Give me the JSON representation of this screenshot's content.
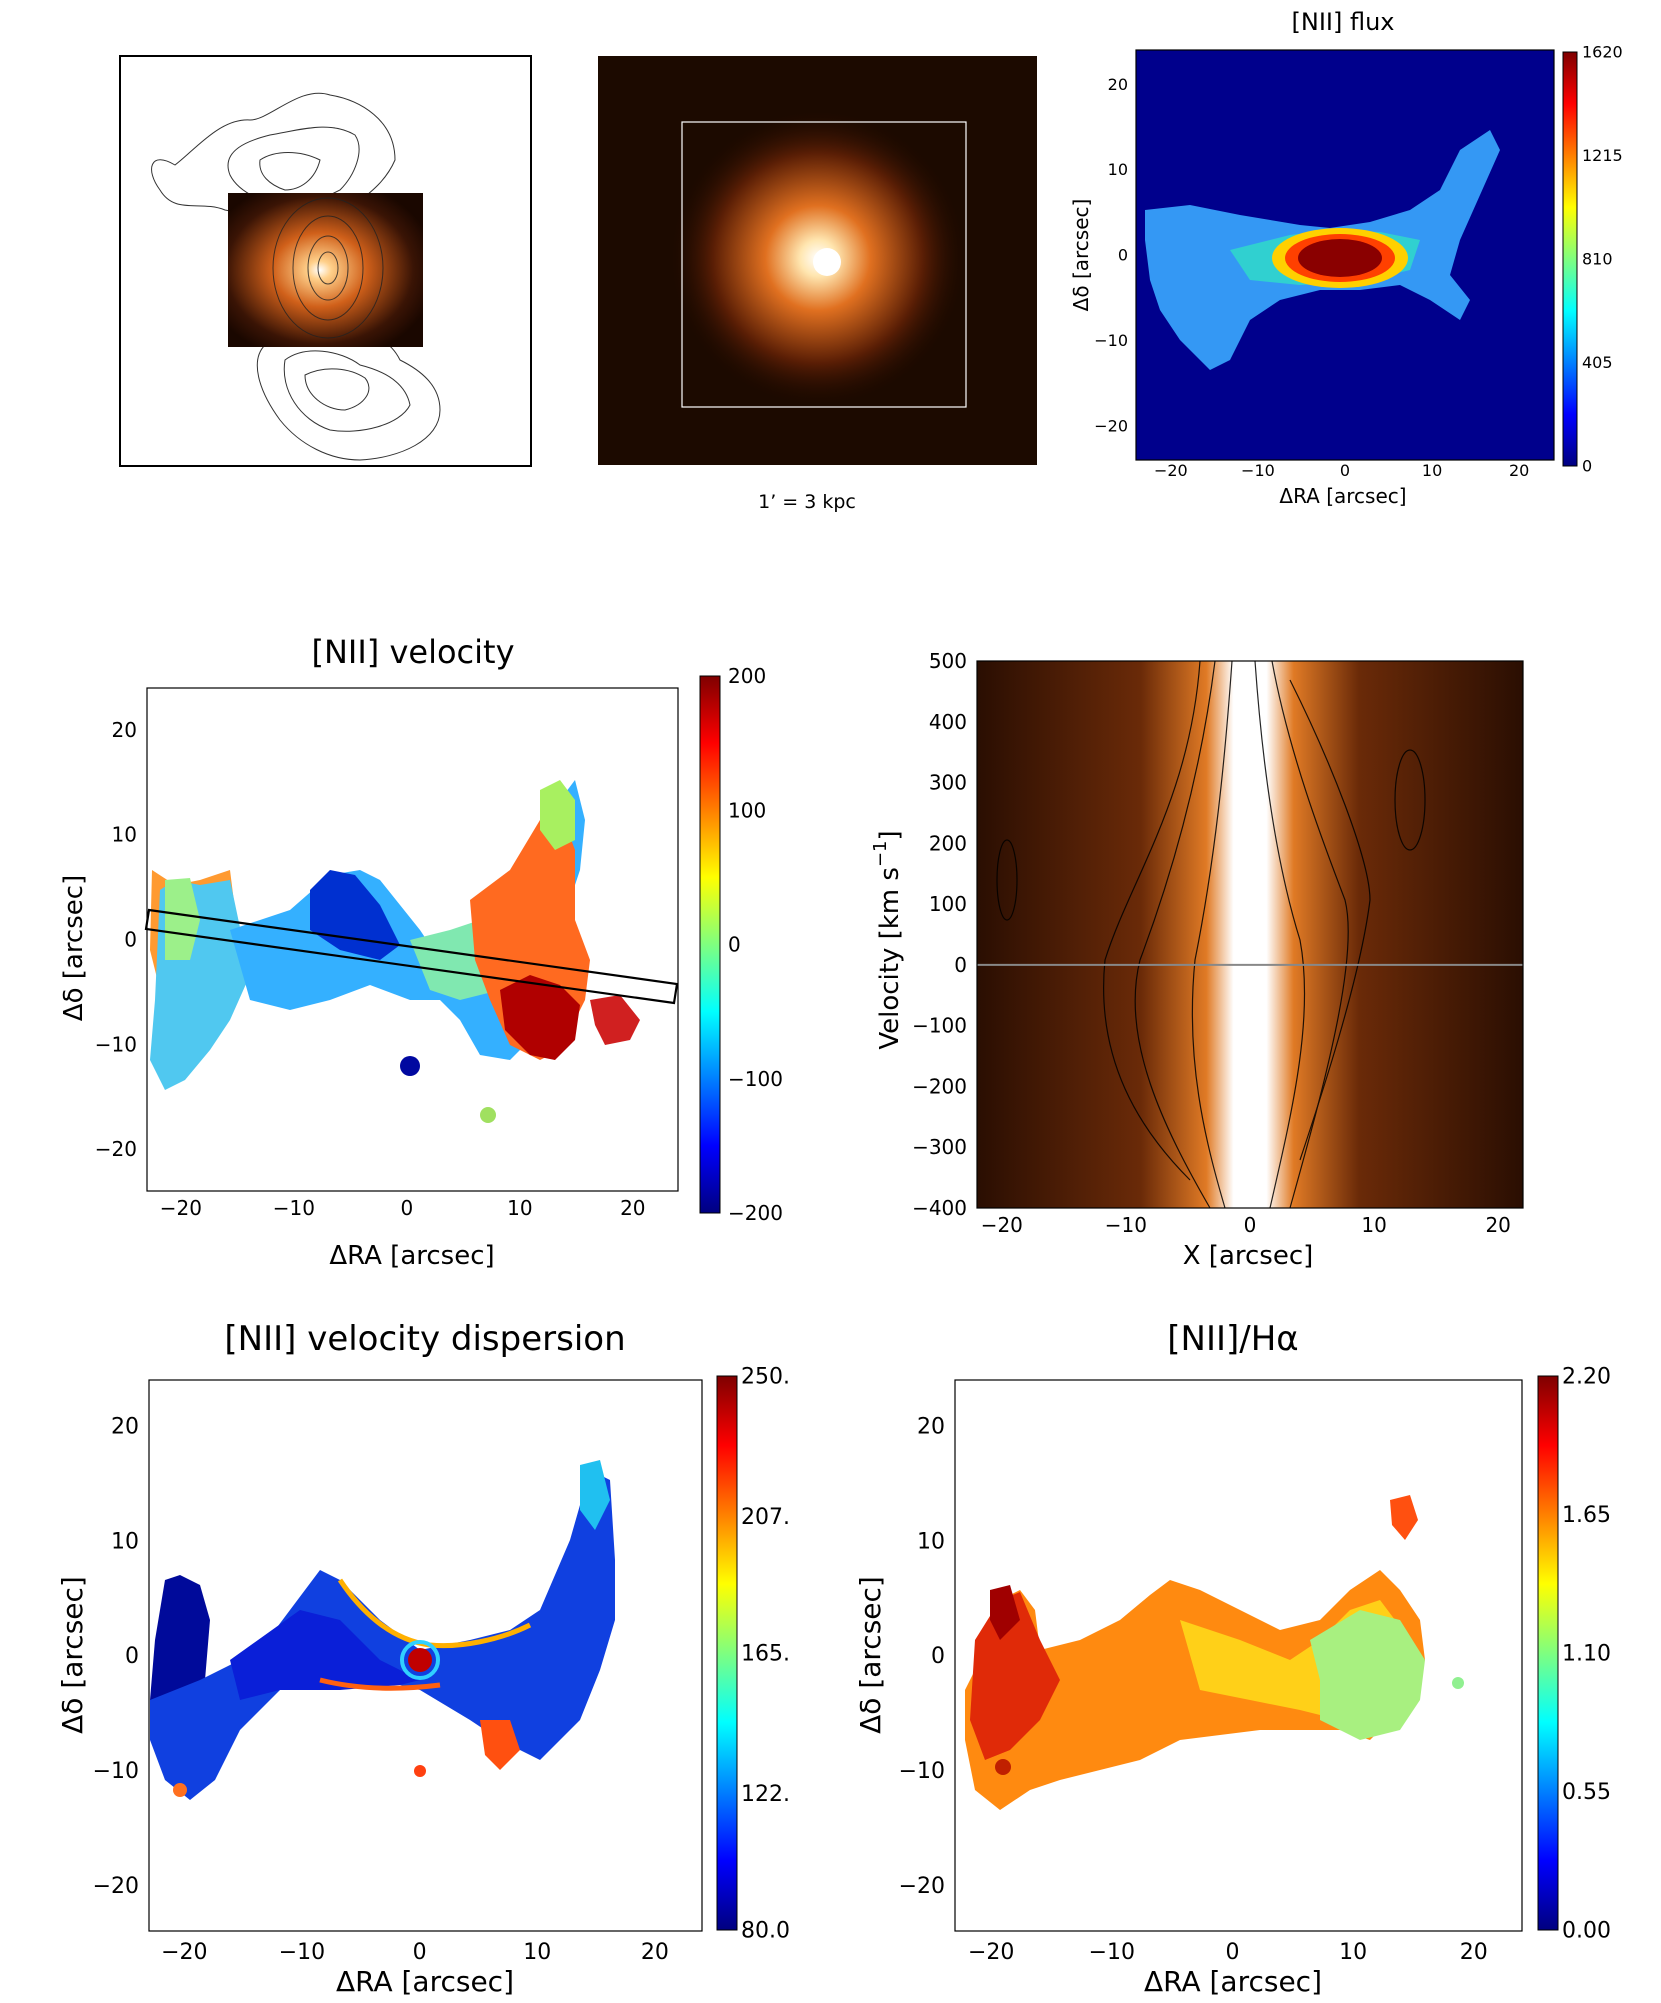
{
  "colormap": [
    "#00007f",
    "#0000ff",
    "#007fff",
    "#00ffff",
    "#7fff7f",
    "#ffff00",
    "#ff7f00",
    "#ff0000",
    "#7f0000"
  ],
  "accent_line": "#888888",
  "chart_data": [
    {
      "id": "radio-overlay",
      "type": "image",
      "contours": "radio",
      "inset": "optical-nucleus"
    },
    {
      "id": "optical-image",
      "type": "image",
      "caption": "1’ = 3 kpc"
    },
    {
      "id": "nii-flux",
      "type": "heatmap",
      "title": "[NII] flux",
      "xlabel": "ΔRA [arcsec]",
      "ylabel": "Δδ [arcsec]",
      "xlim": [
        -24,
        24
      ],
      "ylim": [
        -24,
        24
      ],
      "xticks": [
        "−20",
        "−10",
        "0",
        "10",
        "20"
      ],
      "xtick_values": [
        -20,
        -10,
        0,
        10,
        20
      ],
      "yticks": [
        "20",
        "10",
        "0",
        "−10",
        "−20"
      ],
      "ytick_values": [
        20,
        10,
        0,
        -10,
        -20
      ],
      "colorbar_ticks": [
        "1620",
        "1215",
        "810",
        "405",
        "0"
      ],
      "colorbar_values": [
        1620,
        1215,
        810,
        405,
        0
      ],
      "crange": [
        0,
        1620
      ]
    },
    {
      "id": "nii-velocity",
      "type": "heatmap",
      "title": "[NII] velocity",
      "xlabel": "ΔRA [arcsec]",
      "ylabel": "Δδ [arcsec]",
      "xlim": [
        -23,
        24
      ],
      "ylim": [
        -24,
        24
      ],
      "xticks": [
        "−20",
        "−10",
        "0",
        "10",
        "20"
      ],
      "xtick_values": [
        -20,
        -10,
        0,
        10,
        20
      ],
      "yticks": [
        "20",
        "10",
        "0",
        "−10",
        "−20"
      ],
      "ytick_values": [
        20,
        10,
        0,
        -10,
        -20
      ],
      "colorbar_ticks": [
        "200",
        "100",
        "0",
        "−100",
        "−200"
      ],
      "colorbar_values": [
        200,
        100,
        0,
        -100,
        -200
      ],
      "crange": [
        -200,
        200
      ],
      "slit": "rectangle along position angle from (-22,2) to (24,-4)"
    },
    {
      "id": "pv-diagram",
      "type": "heatmap",
      "title": "",
      "xlabel": "X [arcsec]",
      "ylabel": "Velocity [km s",
      "ylabel_sup": "−1",
      "ylabel_close": "]",
      "xlim": [
        -22,
        22
      ],
      "ylim": [
        -400,
        500
      ],
      "xticks": [
        "−20",
        "−10",
        "0",
        "10",
        "20"
      ],
      "xtick_values": [
        -20,
        -10,
        0,
        10,
        20
      ],
      "yticks": [
        "500",
        "400",
        "300",
        "200",
        "100",
        "0",
        "−100",
        "−200",
        "−300",
        "−400"
      ],
      "ytick_values": [
        500,
        400,
        300,
        200,
        100,
        0,
        -100,
        -200,
        -300,
        -400
      ],
      "zero_line": 0
    },
    {
      "id": "nii-dispersion",
      "type": "heatmap",
      "title": "[NII] velocity dispersion",
      "xlabel": "ΔRA [arcsec]",
      "ylabel": "Δδ [arcsec]",
      "xlim": [
        -23,
        24
      ],
      "ylim": [
        -24,
        24
      ],
      "xticks": [
        "−20",
        "−10",
        "0",
        "10",
        "20"
      ],
      "xtick_values": [
        -20,
        -10,
        0,
        10,
        20
      ],
      "yticks": [
        "20",
        "10",
        "0",
        "−10",
        "−20"
      ],
      "ytick_values": [
        20,
        10,
        0,
        -10,
        -20
      ],
      "colorbar_ticks": [
        "250.",
        "207.",
        "165.",
        "122.",
        "80.0"
      ],
      "colorbar_values": [
        250,
        207,
        165,
        122,
        80
      ],
      "crange": [
        80,
        250
      ]
    },
    {
      "id": "nii-halpha",
      "type": "heatmap",
      "title": "[NII]/Hα",
      "xlabel": "ΔRA [arcsec]",
      "ylabel": "Δδ [arcsec]",
      "xlim": [
        -23,
        24
      ],
      "ylim": [
        -24,
        24
      ],
      "xticks": [
        "−20",
        "−10",
        "0",
        "10",
        "20"
      ],
      "xtick_values": [
        -20,
        -10,
        0,
        10,
        20
      ],
      "yticks": [
        "20",
        "10",
        "0",
        "−10",
        "−20"
      ],
      "ytick_values": [
        20,
        10,
        0,
        -10,
        -20
      ],
      "colorbar_ticks": [
        "2.20",
        "1.65",
        "1.10",
        "0.55",
        "0.00"
      ],
      "colorbar_values": [
        2.2,
        1.65,
        1.1,
        0.55,
        0.0
      ],
      "crange": [
        0,
        2.2
      ]
    }
  ]
}
